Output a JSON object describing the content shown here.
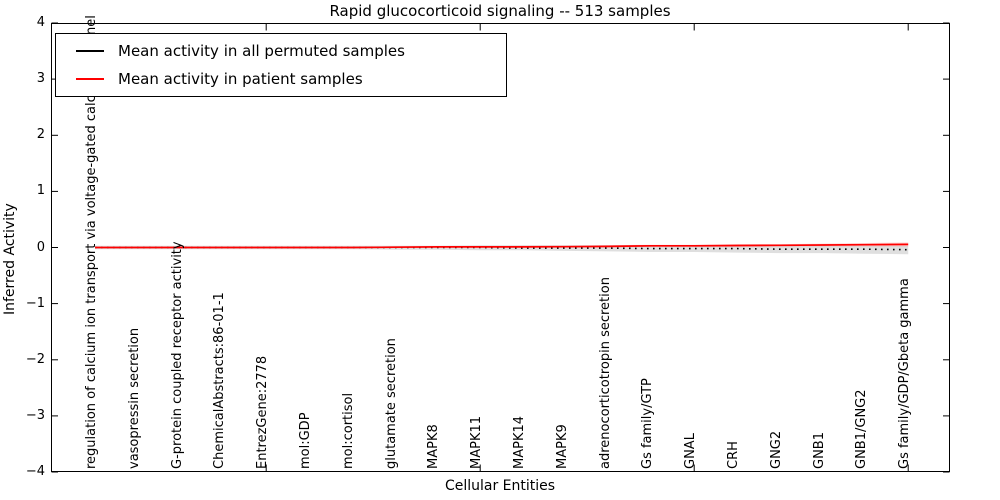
{
  "title": "Rapid glucocorticoid signaling -- 513 samples",
  "legend": {
    "entries": [
      {
        "label": "Mean activity in all permuted samples",
        "color": "#000000"
      },
      {
        "label": "Mean activity in patient samples",
        "color": "#ff0000"
      }
    ]
  },
  "chart_data": {
    "type": "line",
    "title": "Rapid glucocorticoid signaling -- 513 samples",
    "xlabel": "Cellular Entities",
    "ylabel": "Inferred Activity",
    "ylim": [
      -4,
      4
    ],
    "yticks": [
      "4",
      "3",
      "2",
      "1",
      "0",
      "−1",
      "−2",
      "−3",
      "−4"
    ],
    "ytick_values": [
      4,
      3,
      2,
      1,
      0,
      -1,
      -2,
      -3,
      -4
    ],
    "grid": false,
    "legend_position": "upper left",
    "categories": [
      "regulation of calcium ion transport via voltage-gated calcium channel",
      "vasopressin secretion",
      "G-protein coupled receptor activity",
      "ChemicalAbstracts:86-01-1",
      "EntrezGene:2778",
      "mol:GDP",
      "mol:cortisol",
      "glutamate secretion",
      "MAPK8",
      "MAPK11",
      "MAPK14",
      "MAPK9",
      "adrenocorticotropin secretion",
      "Gs family/GTP",
      "GNAL",
      "CRH",
      "GNG2",
      "GNB1",
      "GNB1/GNG2",
      "Gs family/GDP/Gbeta gamma"
    ],
    "xtick_marks_at_category_numbers": [
      5,
      10,
      15,
      20
    ],
    "series": [
      {
        "name": "Mean activity in all permuted samples",
        "color": "#000000",
        "linestyle": "dotted",
        "values": [
          0,
          0,
          0,
          0,
          0,
          0,
          0,
          0,
          0,
          0,
          -0.01,
          -0.01,
          -0.01,
          -0.02,
          -0.02,
          -0.02,
          -0.03,
          -0.03,
          -0.03,
          -0.04
        ]
      },
      {
        "name": "Mean activity in patient samples",
        "color": "#ff0000",
        "linestyle": "solid",
        "values": [
          0,
          0,
          0,
          0,
          0,
          0,
          0,
          0.005,
          0.01,
          0.01,
          0.01,
          0.015,
          0.02,
          0.03,
          0.03,
          0.035,
          0.04,
          0.045,
          0.05,
          0.055
        ]
      }
    ],
    "bands": [
      {
        "name": "permuted-samples-band",
        "color": "rgba(110,110,110,0.22)",
        "hi": [
          0.03,
          0.03,
          0.03,
          0.03,
          0.03,
          0.03,
          0.03,
          0.03,
          0.03,
          0.04,
          0.04,
          0.04,
          0.04,
          0.04,
          0.04,
          0.04,
          0.04,
          0.03,
          0.03,
          0.03
        ],
        "lo": [
          -0.03,
          -0.03,
          -0.03,
          -0.03,
          -0.03,
          -0.03,
          -0.03,
          -0.04,
          -0.04,
          -0.05,
          -0.05,
          -0.06,
          -0.07,
          -0.08,
          -0.08,
          -0.09,
          -0.1,
          -0.1,
          -0.11,
          -0.12
        ]
      },
      {
        "name": "patient-samples-band",
        "color": "rgba(255,0,0,0.16)",
        "hi": [
          0.01,
          0.01,
          0.01,
          0.01,
          0.01,
          0.01,
          0.01,
          0.02,
          0.02,
          0.02,
          0.03,
          0.03,
          0.04,
          0.05,
          0.05,
          0.06,
          0.06,
          0.07,
          0.08,
          0.09
        ],
        "lo": [
          -0.01,
          -0.01,
          -0.01,
          -0.01,
          -0.01,
          -0.01,
          -0.01,
          -0.01,
          0,
          0,
          0,
          0,
          0,
          0.01,
          0.01,
          0.01,
          0.02,
          0.02,
          0.02,
          0.02
        ]
      }
    ]
  }
}
